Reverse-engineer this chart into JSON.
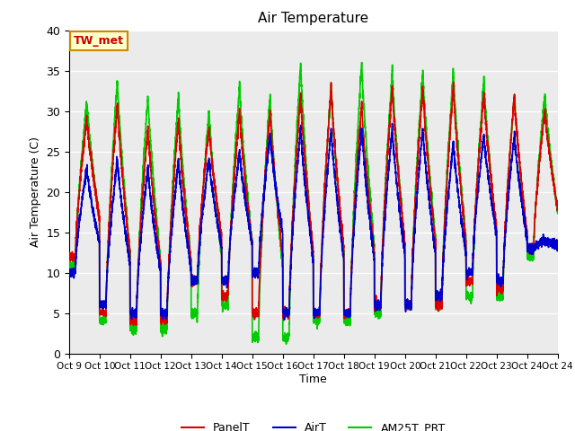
{
  "title": "Air Temperature",
  "ylabel": "Air Temperature (C)",
  "xlabel": "Time",
  "ylim": [
    0,
    40
  ],
  "background_color": "#ebebeb",
  "legend_label": "TW_met",
  "xtick_labels": [
    "Oct 9",
    "Oct 10",
    "Oct 11",
    "Oct 12",
    "Oct 13",
    "Oct 14",
    "Oct 15",
    "Oct 16",
    "Oct 17",
    "Oct 18",
    "Oct 19",
    "Oct 20",
    "Oct 21",
    "Oct 22",
    "Oct 23",
    "Oct 24"
  ],
  "ytick_values": [
    0,
    5,
    10,
    15,
    20,
    25,
    30,
    35,
    40
  ],
  "series": {
    "PanelT": {
      "color": "#dd0000",
      "lw": 1.2
    },
    "AirT": {
      "color": "#0000cc",
      "lw": 1.2
    },
    "AM25T_PRT": {
      "color": "#00cc00",
      "lw": 1.2
    }
  },
  "daily_mins_panel": [
    12,
    5,
    4,
    4,
    9,
    7,
    5,
    5,
    5,
    5,
    6,
    6,
    6,
    9,
    8,
    13
  ],
  "daily_maxs_panel": [
    29,
    31,
    28,
    29,
    28,
    30,
    30,
    32,
    33,
    31,
    33,
    33,
    33,
    32,
    32,
    30
  ],
  "daily_mins_air": [
    10,
    6,
    5,
    5,
    9,
    9,
    10,
    5,
    5,
    5,
    6,
    6,
    7,
    10,
    9,
    13
  ],
  "daily_maxs_air": [
    23,
    24,
    23,
    24,
    24,
    25,
    27,
    28,
    28,
    28,
    28,
    28,
    26,
    27,
    27,
    14
  ],
  "daily_mins_green": [
    11,
    4,
    3,
    3,
    5,
    6,
    2,
    2,
    4,
    4,
    5,
    6,
    6,
    7,
    7,
    12
  ],
  "daily_maxs_green": [
    31,
    34,
    32,
    32,
    30,
    33,
    32,
    36,
    33,
    36,
    35,
    35,
    35,
    34,
    32,
    32
  ]
}
